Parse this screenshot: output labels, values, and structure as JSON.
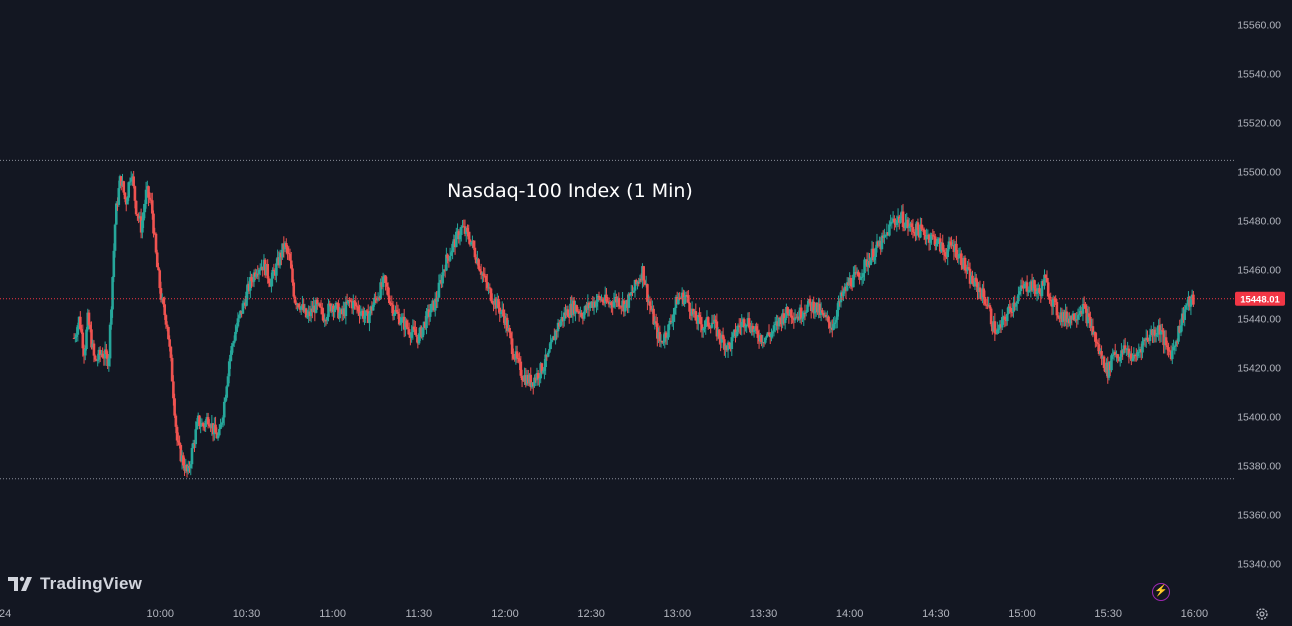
{
  "watermark": "TradingView",
  "colors": {
    "bg": "#131722",
    "up": "#26a69a",
    "down": "#ef5350",
    "level": "#8a8e99",
    "accent": "#f23645"
  },
  "chart_data": {
    "type": "candlestick",
    "title": "Nasdaq-100 Index (1 Min)",
    "last_price": "15448.01",
    "ylim": [
      15325,
      15570
    ],
    "y_ticks": [
      "15560.00",
      "15540.00",
      "15520.00",
      "15500.00",
      "15480.00",
      "15460.00",
      "15440.00",
      "15420.00",
      "15400.00",
      "15380.00",
      "15360.00",
      "15340.00"
    ],
    "x_ticks": [
      "24",
      "10:00",
      "10:30",
      "11:00",
      "11:30",
      "12:00",
      "12:30",
      "13:00",
      "13:30",
      "14:00",
      "14:30",
      "15:00",
      "15:30",
      "16:00"
    ],
    "x_range": [
      -0.43,
      6.73
    ],
    "levels": [
      15504.5,
      15374.5
    ],
    "close_series": [
      [
        0.0,
        15432
      ],
      [
        0.03,
        15440
      ],
      [
        0.06,
        15426
      ],
      [
        0.08,
        15440
      ],
      [
        0.12,
        15422
      ],
      [
        0.16,
        15426
      ],
      [
        0.2,
        15423
      ],
      [
        0.24,
        15482
      ],
      [
        0.27,
        15498
      ],
      [
        0.3,
        15487
      ],
      [
        0.33,
        15501
      ],
      [
        0.36,
        15485
      ],
      [
        0.39,
        15477
      ],
      [
        0.42,
        15492
      ],
      [
        0.45,
        15486
      ],
      [
        0.48,
        15462
      ],
      [
        0.51,
        15446
      ],
      [
        0.54,
        15438
      ],
      [
        0.57,
        15415
      ],
      [
        0.6,
        15388
      ],
      [
        0.63,
        15382
      ],
      [
        0.66,
        15376
      ],
      [
        0.69,
        15388
      ],
      [
        0.72,
        15398
      ],
      [
        0.75,
        15396
      ],
      [
        0.78,
        15400
      ],
      [
        0.81,
        15394
      ],
      [
        0.84,
        15391
      ],
      [
        0.87,
        15405
      ],
      [
        0.9,
        15423
      ],
      [
        0.94,
        15436
      ],
      [
        0.98,
        15445
      ],
      [
        1.02,
        15454
      ],
      [
        1.06,
        15461
      ],
      [
        1.1,
        15462
      ],
      [
        1.14,
        15455
      ],
      [
        1.18,
        15462
      ],
      [
        1.22,
        15470
      ],
      [
        1.25,
        15464
      ],
      [
        1.28,
        15448
      ],
      [
        1.31,
        15446
      ],
      [
        1.35,
        15440
      ],
      [
        1.4,
        15445
      ],
      [
        1.45,
        15441
      ],
      [
        1.5,
        15446
      ],
      [
        1.55,
        15441
      ],
      [
        1.6,
        15447
      ],
      [
        1.65,
        15444
      ],
      [
        1.7,
        15440
      ],
      [
        1.75,
        15448
      ],
      [
        1.8,
        15455
      ],
      [
        1.85,
        15444
      ],
      [
        1.9,
        15439
      ],
      [
        1.95,
        15435
      ],
      [
        2.0,
        15432
      ],
      [
        2.05,
        15441
      ],
      [
        2.1,
        15447
      ],
      [
        2.15,
        15462
      ],
      [
        2.2,
        15470
      ],
      [
        2.25,
        15477
      ],
      [
        2.3,
        15472
      ],
      [
        2.35,
        15462
      ],
      [
        2.4,
        15452
      ],
      [
        2.45,
        15446
      ],
      [
        2.5,
        15440
      ],
      [
        2.55,
        15426
      ],
      [
        2.6,
        15417
      ],
      [
        2.65,
        15414
      ],
      [
        2.7,
        15418
      ],
      [
        2.75,
        15424
      ],
      [
        2.8,
        15436
      ],
      [
        2.85,
        15442
      ],
      [
        2.9,
        15445
      ],
      [
        2.95,
        15442
      ],
      [
        3.0,
        15446
      ],
      [
        3.05,
        15448
      ],
      [
        3.1,
        15446
      ],
      [
        3.15,
        15448
      ],
      [
        3.2,
        15445
      ],
      [
        3.25,
        15452
      ],
      [
        3.3,
        15460
      ],
      [
        3.33,
        15448
      ],
      [
        3.36,
        15440
      ],
      [
        3.4,
        15430
      ],
      [
        3.45,
        15436
      ],
      [
        3.5,
        15448
      ],
      [
        3.55,
        15449
      ],
      [
        3.6,
        15440
      ],
      [
        3.65,
        15437
      ],
      [
        3.7,
        15439
      ],
      [
        3.75,
        15432
      ],
      [
        3.8,
        15428
      ],
      [
        3.85,
        15436
      ],
      [
        3.9,
        15440
      ],
      [
        3.95,
        15434
      ],
      [
        4.0,
        15432
      ],
      [
        4.05,
        15434
      ],
      [
        4.1,
        15440
      ],
      [
        4.15,
        15443
      ],
      [
        4.2,
        15441
      ],
      [
        4.25,
        15445
      ],
      [
        4.3,
        15445
      ],
      [
        4.35,
        15440
      ],
      [
        4.4,
        15437
      ],
      [
        4.45,
        15448
      ],
      [
        4.5,
        15455
      ],
      [
        4.55,
        15457
      ],
      [
        4.6,
        15463
      ],
      [
        4.65,
        15468
      ],
      [
        4.7,
        15472
      ],
      [
        4.75,
        15480
      ],
      [
        4.8,
        15481
      ],
      [
        4.85,
        15477
      ],
      [
        4.9,
        15476
      ],
      [
        4.95,
        15474
      ],
      [
        5.0,
        15472
      ],
      [
        5.05,
        15467
      ],
      [
        5.1,
        15470
      ],
      [
        5.15,
        15464
      ],
      [
        5.2,
        15456
      ],
      [
        5.25,
        15452
      ],
      [
        5.3,
        15446
      ],
      [
        5.33,
        15437
      ],
      [
        5.36,
        15434
      ],
      [
        5.4,
        15440
      ],
      [
        5.45,
        15446
      ],
      [
        5.5,
        15452
      ],
      [
        5.55,
        15454
      ],
      [
        5.6,
        15450
      ],
      [
        5.63,
        15456
      ],
      [
        5.66,
        15450
      ],
      [
        5.7,
        15443
      ],
      [
        5.75,
        15440
      ],
      [
        5.8,
        15441
      ],
      [
        5.85,
        15445
      ],
      [
        5.9,
        15437
      ],
      [
        5.95,
        15426
      ],
      [
        6.0,
        15418
      ],
      [
        6.03,
        15427
      ],
      [
        6.07,
        15424
      ],
      [
        6.1,
        15428
      ],
      [
        6.15,
        15423
      ],
      [
        6.2,
        15430
      ],
      [
        6.25,
        15434
      ],
      [
        6.3,
        15436
      ],
      [
        6.34,
        15427
      ],
      [
        6.37,
        15426
      ],
      [
        6.4,
        15433
      ],
      [
        6.45,
        15445
      ],
      [
        6.5,
        15448
      ]
    ]
  }
}
